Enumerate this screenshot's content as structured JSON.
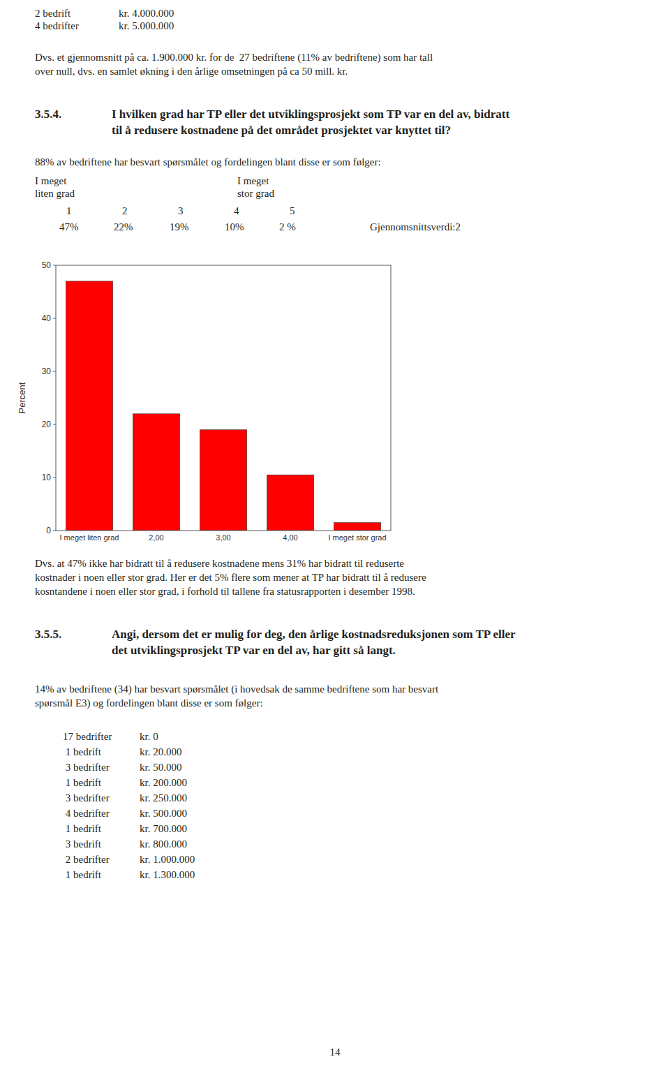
{
  "chart_data": {
    "type": "bar",
    "categories": [
      "I meget liten grad",
      "2,00",
      "3,00",
      "4,00",
      "I meget stor grad"
    ],
    "values": [
      47,
      22,
      19,
      10.5,
      1.5
    ],
    "color": "#ff0000",
    "ylabel": "Percent",
    "ylim": [
      0,
      50
    ],
    "yticks": [
      0,
      10,
      20,
      30,
      40,
      50
    ]
  },
  "page": {
    "bg_color": "#ffffff",
    "text_color": "#231f20",
    "top_list": [
      [
        "2 bedrift",
        "kr. 4.000.000"
      ],
      [
        "4 bedrifter",
        "kr. 5.000.000"
      ]
    ],
    "dvs1": "Dvs. et gjennomsnitt på ca. 1.900.000 kr. for de  27 bedriftene (11% av bedriftene) som har tall",
    "dvs2": "over null, dvs. en samlet økning i den årlige omsetningen på ca 50 mill. kr.",
    "sec354_num": "3.5.4.",
    "sec354_l1": "I hvilken grad har TP eller det utviklingsprosjekt som TP var en del av, bidratt",
    "sec354_l2": "til å redusere kostnadene på det området prosjektet var knyttet til?",
    "pct88": "88% av bedriftene har besvart spørsmålet og fordelingen blant disse er som følger:",
    "lbl_left1": "I meget",
    "lbl_left2": "liten grad",
    "lbl_right1": "I meget",
    "lbl_right2": "stor grad",
    "scale_nums": [
      "1",
      "2",
      "3",
      "4",
      "5"
    ],
    "scale_pcts": [
      "47%",
      "22%",
      "19%",
      "10%",
      "2 %"
    ],
    "gjennom": "Gjennomsnittsverdi:2",
    "body1": "Dvs. at 47% ikke har bidratt til å redusere kostnadene mens 31% har bidratt til reduserte",
    "body2": "kostnader i noen eller stor grad. Her er det 5% flere som mener at TP har bidratt til å redusere",
    "body3": "kosntandene i noen eller stor grad, i forhold til tallene fra statusrapporten i desember 1998.",
    "sec355_num": "3.5.5.",
    "sec355_l1": "Angi, dersom det er mulig for deg, den årlige kostnadsreduksjonen som TP eller",
    "sec355_l2": "det utviklingsprosjekt TP var en del av, har gitt så langt.",
    "footer1": "14% av bedriftene (34) har besvart spørsmålet (i hovedsak de samme bedriftene som har besvart",
    "footer2": "spørsmål E3) og fordelingen blant disse er som følger:",
    "list_col1": [
      "17 bedrifter",
      " 1 bedrift",
      " 3 bedrifter",
      " 1 bedrift",
      " 3 bedrifter",
      " 4 bedrifter",
      " 1 bedrift",
      " 3 bedrift",
      " 2 bedrifter",
      " 1 bedrift"
    ],
    "list_col2": [
      "kr. 0",
      "kr. 20.000",
      "kr. 50.000",
      "kr. 200.000",
      "kr. 250.000",
      "kr. 500.000",
      "kr. 700.000",
      "kr. 800.000",
      "kr. 1.000.000",
      "kr. 1.300.000"
    ],
    "page_number": "14"
  }
}
